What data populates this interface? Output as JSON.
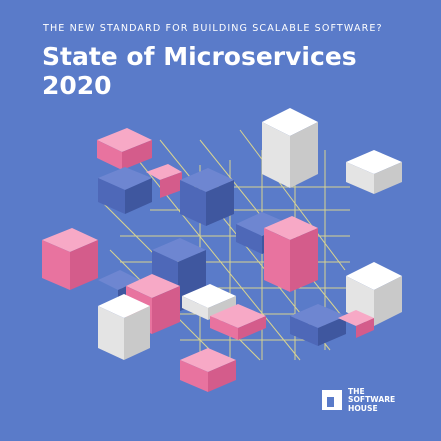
{
  "cover": {
    "kicker": "THE NEW STANDARD FOR BUILDING SCALABLE SOFTWARE?",
    "title_line1": "State of Microservices",
    "title_line2": "2020"
  },
  "publisher": {
    "logo_icon": "software-house-logo-icon",
    "line1": "THE",
    "line2": "SOFTWARE",
    "line3": "HOUSE"
  },
  "colors": {
    "background": "#5a7bc9",
    "grid": "#e6dd8a",
    "pink": "#ef7ba8",
    "blue": "#5168b6",
    "white": "#eeeeee",
    "text": "#ffffff"
  }
}
